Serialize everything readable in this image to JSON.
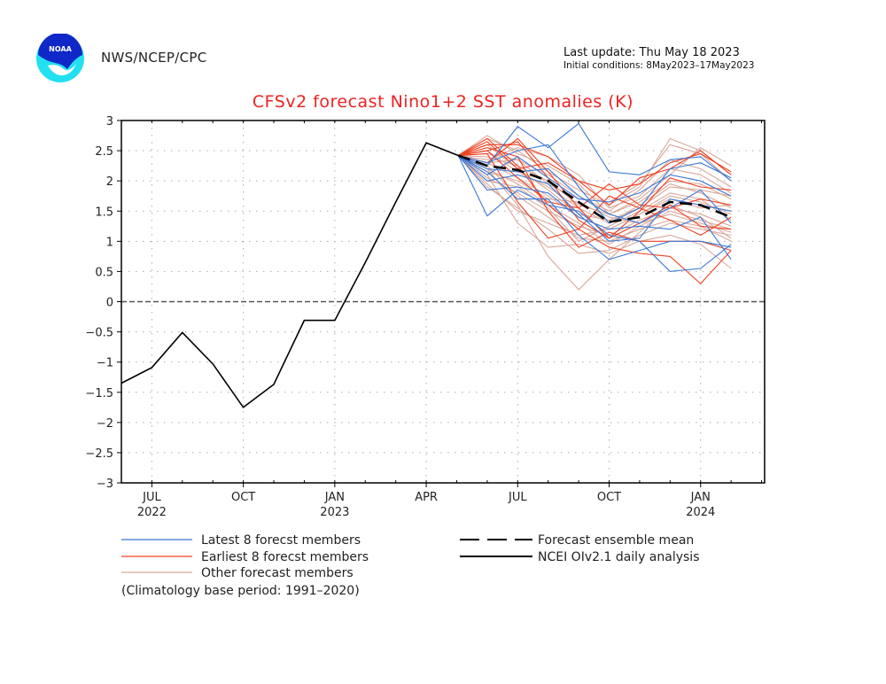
{
  "header": {
    "org": "NWS/NCEP/CPC",
    "last_update": "Last update: Thu May 18 2023",
    "initial_conditions": "Initial conditions: 8May2023–17May2023",
    "logo_text": "NOAA"
  },
  "colors": {
    "title": "#ee2222",
    "latest": "#3a78d8",
    "earliest": "#f04020",
    "other": "#d9a89a",
    "mean": "#000000",
    "observed": "#000000"
  },
  "chart_data": {
    "type": "line",
    "title": "CFSv2 forecast Nino1+2 SST anomalies (K)",
    "xlabel": "",
    "ylabel": "",
    "ylim": [
      -3,
      3
    ],
    "yticks": [
      3,
      2.5,
      2,
      1.5,
      1,
      0.5,
      0,
      -0.5,
      -1,
      -1.5,
      -2,
      -2.5,
      -3
    ],
    "ytick_labels": [
      "3",
      "2.5",
      "2",
      "1.5",
      "1",
      "0.5",
      "0",
      "−0.5",
      "−1",
      "−1.5",
      "−2",
      "−2.5",
      "−3"
    ],
    "xlim_months": [
      0,
      21.1
    ],
    "xticks": [
      {
        "m": 1,
        "label": "JUL",
        "year": "2022"
      },
      {
        "m": 4,
        "label": "OCT",
        "year": ""
      },
      {
        "m": 7,
        "label": "JAN",
        "year": "2023"
      },
      {
        "m": 10,
        "label": "APR",
        "year": ""
      },
      {
        "m": 13,
        "label": "JUL",
        "year": ""
      },
      {
        "m": 16,
        "label": "OCT",
        "year": ""
      },
      {
        "m": 19,
        "label": "JAN",
        "year": "2024"
      }
    ],
    "grid": true,
    "zero_line": "dashed",
    "legend_placement": "bottom",
    "month_index_note": "month 0 = Jun 2022",
    "observed": {
      "name": "NCEI OIv2.1 daily analysis",
      "x": [
        0,
        1,
        2,
        3,
        4,
        5,
        6,
        7,
        8,
        9,
        10,
        11.05
      ],
      "y": [
        -1.35,
        -1.09,
        -0.51,
        -1.03,
        -1.75,
        -1.37,
        -0.31,
        -0.31,
        0.65,
        1.65,
        2.63,
        2.42
      ]
    },
    "mean": {
      "name": "Forecast ensemble mean",
      "x": [
        11.05,
        12,
        13,
        14,
        15,
        16,
        17,
        18,
        19,
        20
      ],
      "y": [
        2.42,
        2.25,
        2.18,
        2.0,
        1.65,
        1.32,
        1.4,
        1.65,
        1.6,
        1.4
      ]
    },
    "forecast_x": [
      11.05,
      12,
      13,
      14,
      15,
      16,
      17,
      18,
      19,
      20
    ],
    "latest_members": {
      "name": "Latest 8 forecst members",
      "series": [
        [
          2.42,
          2.25,
          2.9,
          2.55,
          2.95,
          2.15,
          2.1,
          2.35,
          2.4,
          2.0
        ],
        [
          2.42,
          1.42,
          1.85,
          1.6,
          1.5,
          1.1,
          1.0,
          0.5,
          0.55,
          0.95
        ],
        [
          2.42,
          2.1,
          2.4,
          2.05,
          1.7,
          1.65,
          1.8,
          2.1,
          2.0,
          1.75
        ],
        [
          2.42,
          1.85,
          1.9,
          1.8,
          1.4,
          1.2,
          1.25,
          1.2,
          1.4,
          0.7
        ],
        [
          2.42,
          2.3,
          2.5,
          2.6,
          1.9,
          1.3,
          1.55,
          2.2,
          2.3,
          2.05
        ],
        [
          2.42,
          2.15,
          1.7,
          1.7,
          1.1,
          0.7,
          0.85,
          1.0,
          1.0,
          0.9
        ],
        [
          2.42,
          2.0,
          2.1,
          1.95,
          1.45,
          1.0,
          1.05,
          1.7,
          1.6,
          1.5
        ],
        [
          2.42,
          2.2,
          2.15,
          2.2,
          1.75,
          1.45,
          1.3,
          1.55,
          1.85,
          1.3
        ]
      ]
    },
    "earliest_members": {
      "name": "Earliest 8 forecst members",
      "series": [
        [
          2.42,
          2.6,
          2.6,
          2.4,
          2.0,
          1.6,
          2.05,
          2.2,
          2.5,
          2.1
        ],
        [
          2.42,
          2.7,
          2.25,
          1.6,
          1.2,
          0.9,
          0.8,
          0.75,
          0.3,
          0.85
        ],
        [
          2.42,
          2.5,
          2.65,
          2.05,
          1.35,
          1.05,
          1.5,
          2.05,
          1.9,
          1.85
        ],
        [
          2.42,
          2.45,
          1.65,
          1.05,
          1.2,
          1.75,
          1.55,
          1.35,
          1.1,
          1.4
        ],
        [
          2.42,
          2.65,
          2.2,
          2.3,
          2.0,
          1.85,
          1.95,
          2.3,
          2.45,
          2.15
        ],
        [
          2.42,
          2.55,
          2.4,
          1.5,
          0.9,
          1.15,
          1.0,
          1.0,
          1.0,
          0.85
        ],
        [
          2.42,
          2.5,
          2.05,
          1.65,
          1.55,
          1.05,
          1.3,
          1.6,
          1.25,
          1.2
        ],
        [
          2.42,
          2.3,
          2.7,
          2.15,
          1.55,
          1.95,
          1.6,
          1.55,
          1.7,
          1.6
        ]
      ]
    },
    "other_members": {
      "name": "Other forecast members",
      "series": [
        [
          2.42,
          2.75,
          2.45,
          2.25,
          1.95,
          1.45,
          1.7,
          2.1,
          2.55,
          2.25
        ],
        [
          2.42,
          2.2,
          1.6,
          0.75,
          0.2,
          0.7,
          1.15,
          1.6,
          1.4,
          1.05
        ],
        [
          2.42,
          2.0,
          1.9,
          1.55,
          1.0,
          1.25,
          1.5,
          1.8,
          1.7,
          1.35
        ],
        [
          2.42,
          2.3,
          2.35,
          1.95,
          1.7,
          1.65,
          1.95,
          2.6,
          2.45,
          2.0
        ],
        [
          2.42,
          2.1,
          1.3,
          0.9,
          0.95,
          0.8,
          1.0,
          1.1,
          0.95,
          0.55
        ],
        [
          2.42,
          2.6,
          2.2,
          1.85,
          1.45,
          1.35,
          1.55,
          1.9,
          1.85,
          1.75
        ],
        [
          2.42,
          2.15,
          2.0,
          1.7,
          1.65,
          1.4,
          1.3,
          1.45,
          1.3,
          1.15
        ],
        [
          2.42,
          1.95,
          1.5,
          1.3,
          1.1,
          1.2,
          1.45,
          1.7,
          1.55,
          1.6
        ],
        [
          2.42,
          2.35,
          2.55,
          2.4,
          2.1,
          1.55,
          1.75,
          2.2,
          2.1,
          1.8
        ],
        [
          2.42,
          2.25,
          1.75,
          1.4,
          1.05,
          1.0,
          1.2,
          1.35,
          1.25,
          1.0
        ],
        [
          2.42,
          2.45,
          2.35,
          2.1,
          1.75,
          1.5,
          1.85,
          2.35,
          2.2,
          1.9
        ],
        [
          2.42,
          2.05,
          1.8,
          1.5,
          1.25,
          1.1,
          1.35,
          1.55,
          1.45,
          1.25
        ],
        [
          2.42,
          2.5,
          2.15,
          1.9,
          1.55,
          1.3,
          1.6,
          1.95,
          1.8,
          1.55
        ],
        [
          2.42,
          1.9,
          1.55,
          1.2,
          0.8,
          0.85,
          1.1,
          1.3,
          1.2,
          1.1
        ],
        [
          2.42,
          2.3,
          2.05,
          1.75,
          1.4,
          1.2,
          1.45,
          1.75,
          1.65,
          1.45
        ],
        [
          2.42,
          2.7,
          2.5,
          2.15,
          1.85,
          1.6,
          1.9,
          2.7,
          2.5,
          2.1
        ],
        [
          2.42,
          2.2,
          1.95,
          1.6,
          1.3,
          0.95,
          1.25,
          1.5,
          1.35,
          1.2
        ],
        [
          2.42,
          2.4,
          2.25,
          2.0,
          1.6,
          1.45,
          1.65,
          2.0,
          1.95,
          1.7
        ]
      ]
    },
    "legend": [
      {
        "label": "Latest 8 forecst members",
        "style": "latest"
      },
      {
        "label": "Earliest 8 forecst members",
        "style": "earliest"
      },
      {
        "label": "Other forecast members",
        "style": "other"
      },
      {
        "label": "Forecast ensemble mean",
        "style": "mean"
      },
      {
        "label": "NCEI OIv2.1 daily analysis",
        "style": "observed"
      }
    ],
    "footnote": "(Climatology base period: 1991–2020)"
  }
}
